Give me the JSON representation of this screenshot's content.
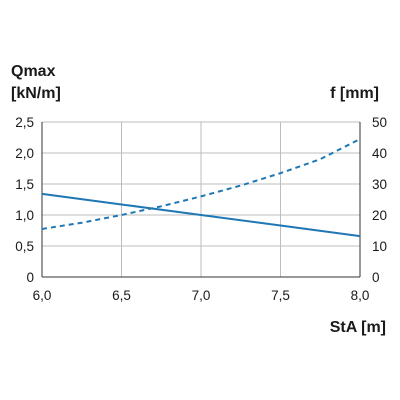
{
  "chart_data": {
    "type": "line",
    "xlabel": "StA [m]",
    "ylabel_left_line1": "Qmax",
    "ylabel_left_line2": "[kN/m]",
    "ylabel_right": "f [mm]",
    "x_ticks": [
      "6,0",
      "6,5",
      "7,0",
      "7,5",
      "8,0"
    ],
    "x_tick_values": [
      6.0,
      6.5,
      7.0,
      7.5,
      8.0
    ],
    "xlim": [
      6.0,
      8.0
    ],
    "y_left_ticks": [
      "0",
      "0,5",
      "1,0",
      "1,5",
      "2,0",
      "2,5"
    ],
    "y_left_tick_values": [
      0,
      0.5,
      1.0,
      1.5,
      2.0,
      2.5
    ],
    "ylim_left": [
      0,
      2.5
    ],
    "y_right_ticks": [
      "0",
      "10",
      "20",
      "30",
      "40",
      "50"
    ],
    "y_right_tick_values": [
      0,
      10,
      20,
      30,
      40,
      50
    ],
    "ylim_right": [
      0,
      50
    ],
    "grid": true,
    "series": [
      {
        "axis": "left",
        "style": "solid",
        "color": "#1f77b4",
        "x": [
          6.0,
          6.5,
          7.0,
          7.5,
          8.0
        ],
        "values": [
          1.34,
          1.17,
          1.0,
          0.83,
          0.66
        ]
      },
      {
        "axis": "right",
        "style": "dashed",
        "color": "#1f77b4",
        "x": [
          6.0,
          6.25,
          6.5,
          6.75,
          7.0,
          7.25,
          7.5,
          7.75,
          8.0
        ],
        "values": [
          15.5,
          17.5,
          20.0,
          22.8,
          26.0,
          29.5,
          33.5,
          38.0,
          44.5
        ]
      }
    ]
  }
}
